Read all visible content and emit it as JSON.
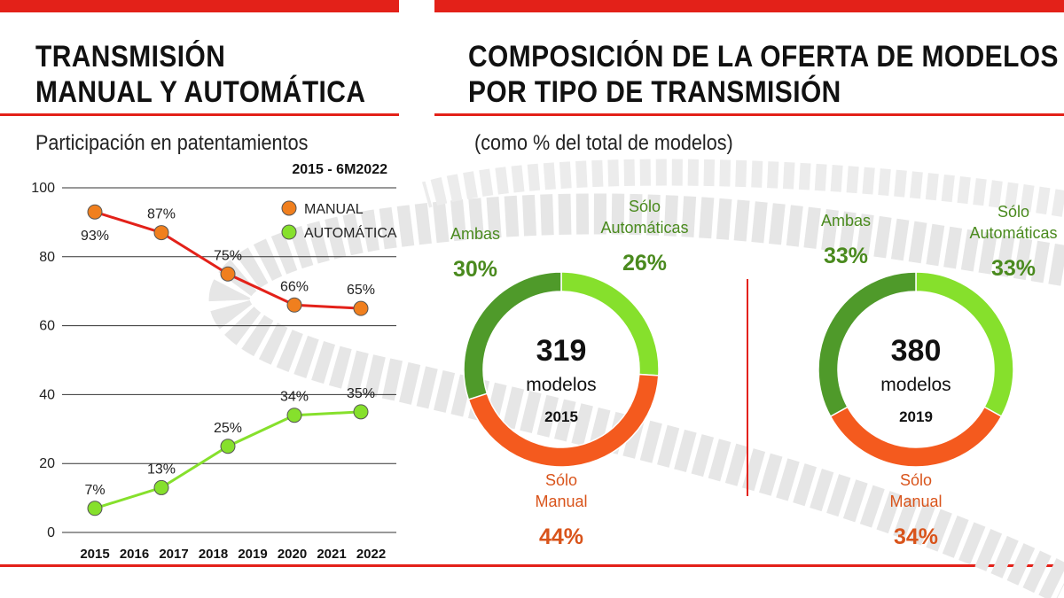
{
  "left": {
    "title_line1": "TRANSMISIÓN",
    "title_line2": "MANUAL Y AUTOMÁTICA",
    "subtitle": "Participación en patentamientos",
    "period": "2015 - 6M2022"
  },
  "right": {
    "title_line1": "COMPOSICIÓN DE LA OFERTA DE MODELOS",
    "title_line2": "POR TIPO DE TRANSMISIÓN",
    "subtitle": "(como % del total de modelos)"
  },
  "colors": {
    "red": "#e32119",
    "manual_line": "#e32119",
    "manual_dot": "#f07f1e",
    "auto": "#86e02c",
    "ambas": "#4f9a2a",
    "solo_manual": "#f45a1e",
    "label_green": "#4a8a1e",
    "label_orange": "#d9541b"
  },
  "chart_data": [
    {
      "type": "line",
      "title": "Participación en patentamientos",
      "subtitle": "2015 - 6M2022",
      "x_ticks": [
        "2015",
        "2016",
        "2017",
        "2018",
        "2019",
        "2020",
        "2021",
        "2022"
      ],
      "y_ticks": [
        0,
        20,
        40,
        60,
        80,
        100
      ],
      "ylim": [
        0,
        100
      ],
      "grid": true,
      "legend_position": "top-right",
      "series": [
        {
          "name": "MANUAL",
          "x": [
            "2015",
            "2017",
            "2018",
            "2020",
            "2022"
          ],
          "values": [
            93,
            87,
            75,
            66,
            65
          ],
          "labels": [
            "93%",
            "87%",
            "75%",
            "66%",
            "65%"
          ]
        },
        {
          "name": "AUTOMÁTICA",
          "x": [
            "2015",
            "2017",
            "2018",
            "2020",
            "2022"
          ],
          "values": [
            7,
            13,
            25,
            34,
            35
          ],
          "labels": [
            "7%",
            "13%",
            "25%",
            "34%",
            "35%"
          ]
        }
      ]
    },
    {
      "type": "pie",
      "center_value": "319",
      "center_unit": "modelos",
      "center_year": "2015",
      "slices": [
        {
          "name": "Sólo Automáticas",
          "value": 26,
          "label": "26%"
        },
        {
          "name": "Sólo Manual",
          "value": 44,
          "label": "44%"
        },
        {
          "name": "Ambas",
          "value": 30,
          "label": "30%"
        }
      ]
    },
    {
      "type": "pie",
      "center_value": "380",
      "center_unit": "modelos",
      "center_year": "2019",
      "slices": [
        {
          "name": "Sólo Automáticas",
          "value": 33,
          "label": "33%"
        },
        {
          "name": "Sólo Manual",
          "value": 34,
          "label": "34%"
        },
        {
          "name": "Ambas",
          "value": 33,
          "label": "33%"
        }
      ]
    }
  ]
}
